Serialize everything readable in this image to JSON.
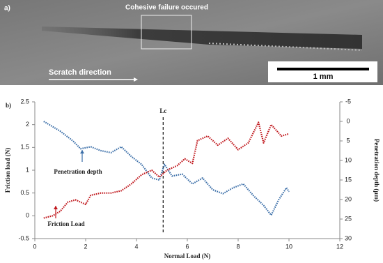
{
  "figure_a": {
    "panel_label": "a)",
    "box_label": "Cohesive failure occured",
    "direction_label": "Scratch direction",
    "scale_label": "1 mm"
  },
  "chart_data": {
    "type": "line",
    "panel_label": "b)",
    "x_label": "Normal Load (N)",
    "y_label": "Friction load (N)",
    "y2_label": "Penetration depth (µm)",
    "xlim": [
      0,
      12
    ],
    "xticks": [
      0,
      2,
      4,
      6,
      8,
      10,
      12
    ],
    "ylim": [
      -0.5,
      2.5
    ],
    "yticks": [
      -0.5,
      0,
      0.5,
      1,
      1.5,
      2,
      2.5
    ],
    "y2lim": [
      -5,
      30
    ],
    "y2ticks": [
      -5,
      0,
      5,
      10,
      15,
      20,
      25,
      30
    ],
    "y2_inverted": true,
    "annotations": [
      {
        "text": "Lc",
        "x": 5.05
      }
    ],
    "series": [
      {
        "name": "Penetration depth",
        "color": "#3a6ea8",
        "axis": "y2",
        "x": [
          0.35,
          1,
          1.5,
          1.8,
          2.2,
          2.6,
          3,
          3.4,
          3.8,
          4.2,
          4.6,
          4.9,
          5.1,
          5.4,
          5.8,
          6.2,
          6.6,
          7,
          7.4,
          7.8,
          8.2,
          8.6,
          9,
          9.3,
          9.6,
          9.9,
          10
        ],
        "values": [
          0,
          2.5,
          5,
          7,
          6.5,
          7.5,
          8,
          6.5,
          9,
          11,
          14.5,
          15,
          11,
          14,
          13.5,
          16,
          14.5,
          17.5,
          18.5,
          17,
          16,
          19,
          21.5,
          24,
          20,
          17,
          18
        ]
      },
      {
        "name": "Friction Load",
        "color": "#c0171c",
        "x": [
          0.35,
          0.7,
          1,
          1.3,
          1.6,
          2,
          2.2,
          2.6,
          3,
          3.4,
          3.8,
          4.2,
          4.6,
          4.9,
          5.2,
          5.6,
          5.9,
          6.2,
          6.4,
          6.8,
          7.2,
          7.6,
          8,
          8.4,
          8.8,
          9,
          9.3,
          9.7,
          10
        ],
        "values": [
          -0.05,
          0,
          0.1,
          0.3,
          0.35,
          0.25,
          0.45,
          0.5,
          0.5,
          0.55,
          0.7,
          0.9,
          1,
          0.85,
          1,
          1.1,
          1.25,
          1.15,
          1.65,
          1.75,
          1.55,
          1.7,
          1.45,
          1.6,
          2.05,
          1.6,
          2,
          1.75,
          1.8
        ]
      }
    ]
  }
}
